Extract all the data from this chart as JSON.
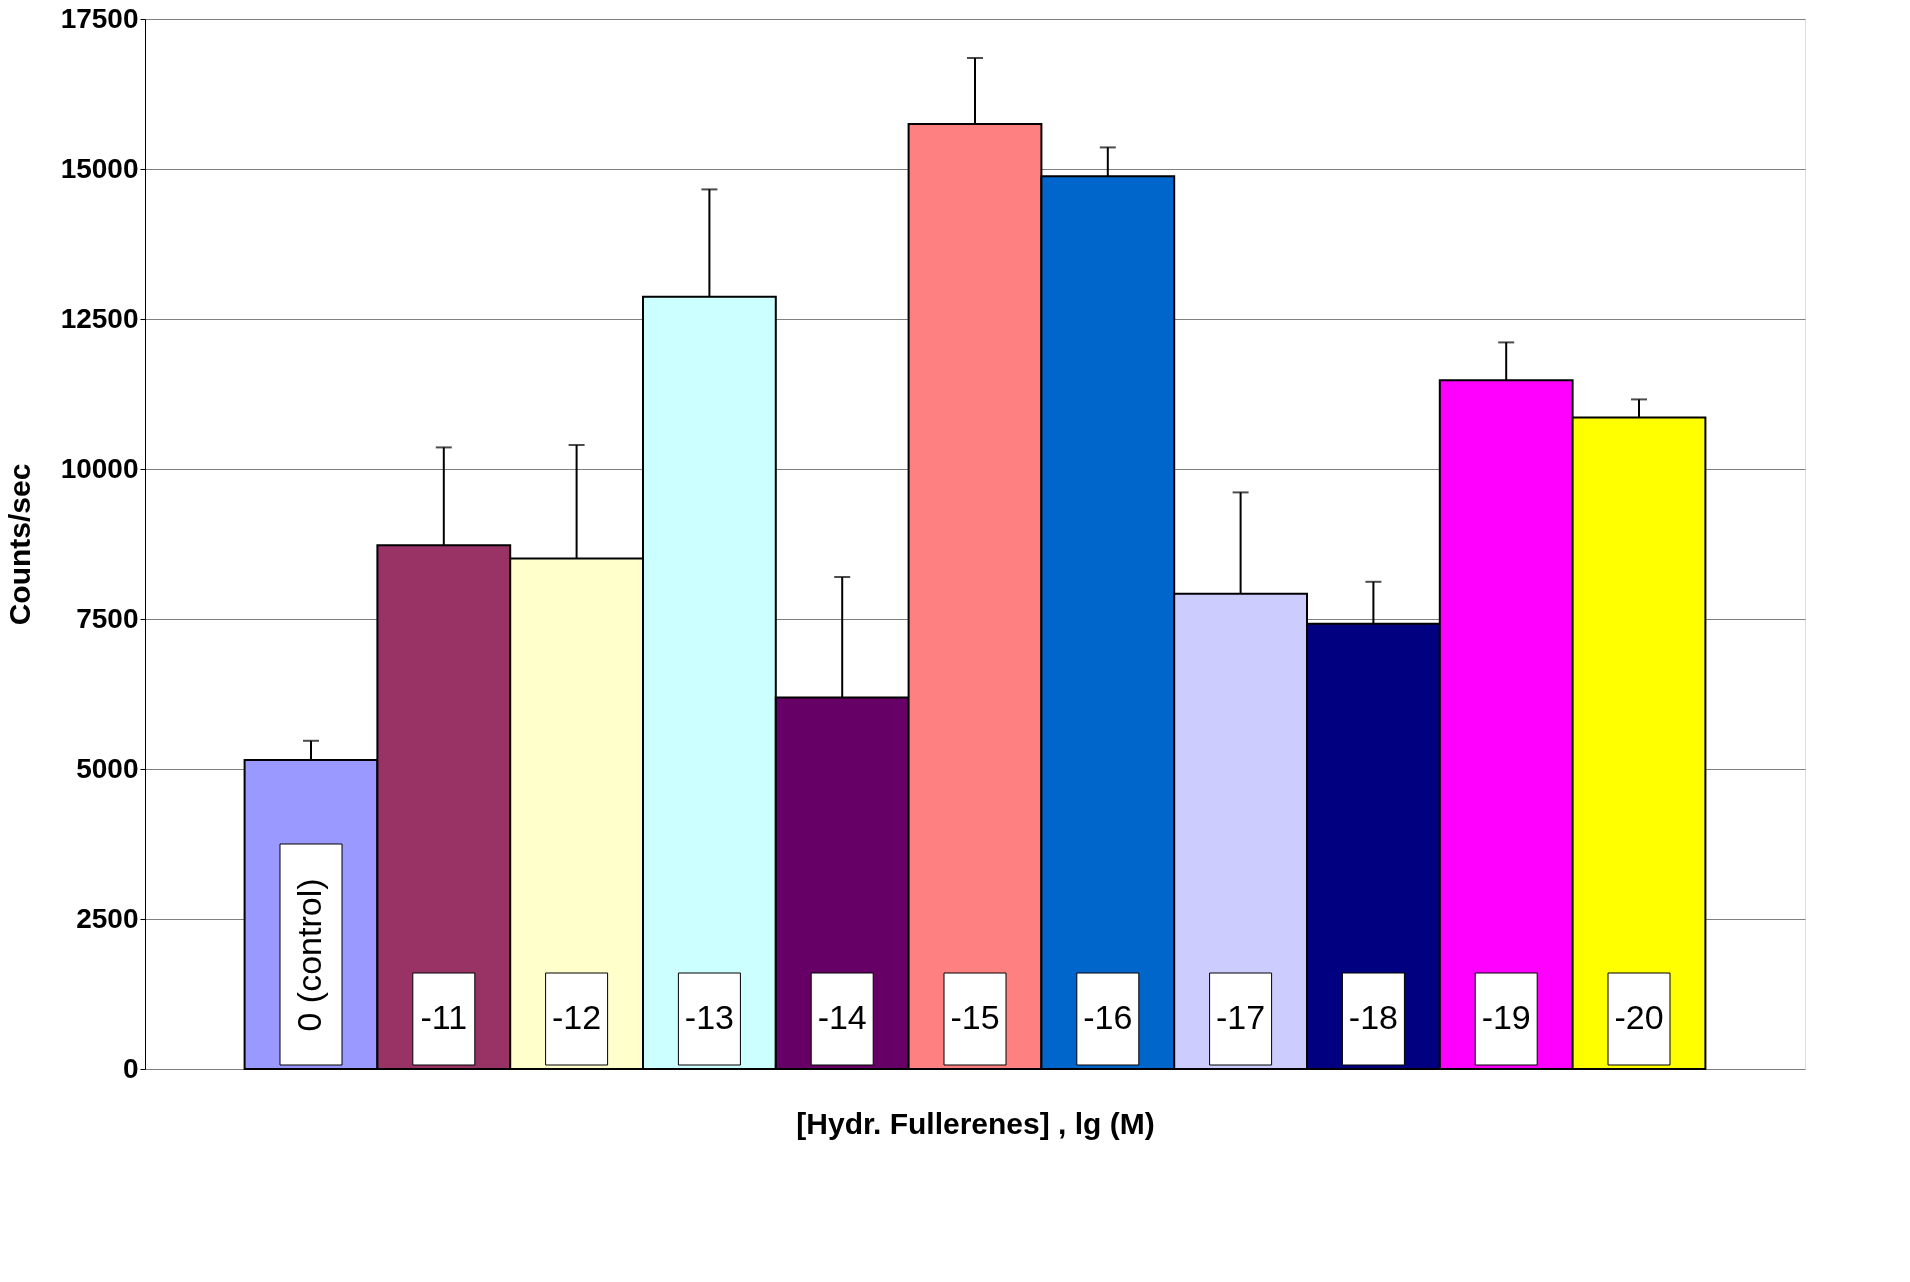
{
  "chart_data": {
    "type": "bar",
    "xlabel": "[Hydr. Fullerenes] , lg (M)",
    "ylabel": "Counts/sec",
    "categories": [
      "0 (control)",
      "-11",
      "-12",
      "-13",
      "-14",
      "-15",
      "-16",
      "-17",
      "-18",
      "-19",
      "-20"
    ],
    "values": [
      5150,
      8730,
      8510,
      12870,
      6190,
      15750,
      14880,
      7920,
      7420,
      11480,
      10860
    ],
    "errors": [
      [
        5150,
        5470
      ],
      [
        8730,
        10360
      ],
      [
        8510,
        10400
      ],
      [
        12870,
        14660
      ],
      [
        6190,
        8200
      ],
      [
        15750,
        16850
      ],
      [
        14880,
        15360
      ],
      [
        7920,
        9610
      ],
      [
        7420,
        8120
      ],
      [
        11480,
        12110
      ],
      [
        10860,
        11160
      ]
    ],
    "colors": [
      "#9999ff",
      "#993366",
      "#ffffcc",
      "#ccffff",
      "#660066",
      "#ff8080",
      "#0066cc",
      "#ccccff",
      "#000080",
      "#ff00ff",
      "#ffff00"
    ],
    "ylim": [
      0,
      17500
    ],
    "yticks": [
      0,
      2500,
      5000,
      7500,
      10000,
      12500,
      15000,
      17500
    ],
    "grid": "y"
  }
}
